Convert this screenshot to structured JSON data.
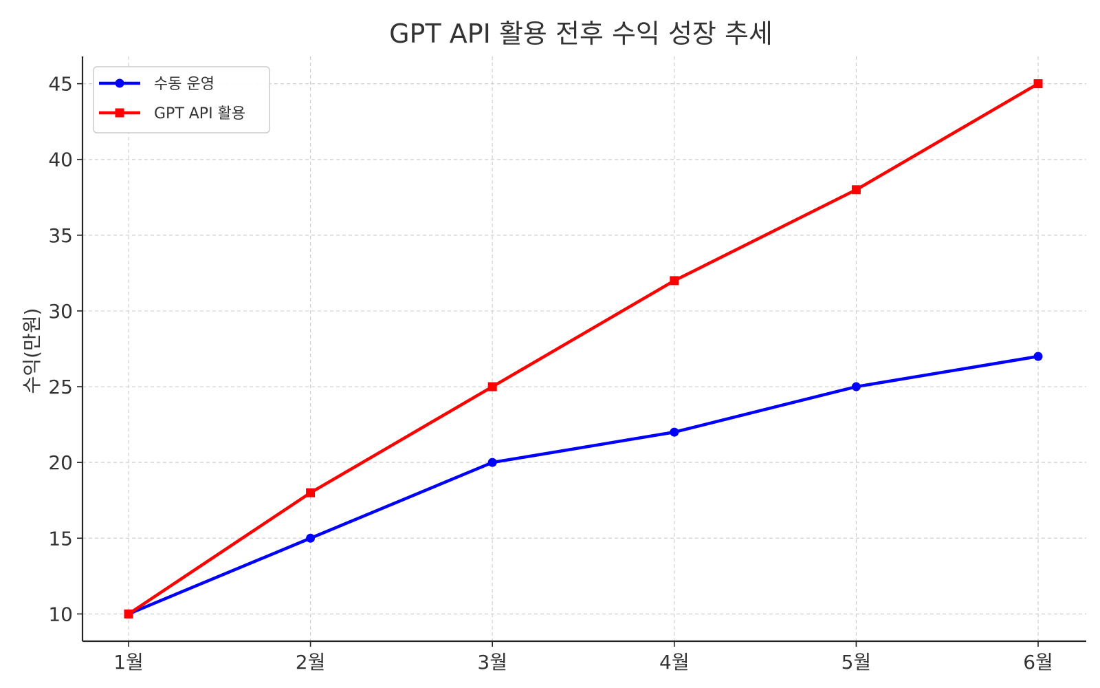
{
  "chart_data": {
    "type": "line",
    "title": "GPT API 활용 전후 수익 성장 추세",
    "xlabel": "",
    "ylabel": "수익(만원)",
    "categories": [
      "1월",
      "2월",
      "3월",
      "4월",
      "5월",
      "6월"
    ],
    "ylim": [
      8.2,
      46.8
    ],
    "yticks": [
      10,
      15,
      20,
      25,
      30,
      35,
      40,
      45
    ],
    "grid": true,
    "legend_position": "top-left",
    "series": [
      {
        "name": "수동 운영",
        "values": [
          10,
          15,
          20,
          22,
          25,
          27
        ],
        "color": "#0000ff",
        "marker": "circle"
      },
      {
        "name": "GPT API 활용",
        "values": [
          10,
          18,
          25,
          32,
          38,
          45
        ],
        "color": "#ff0000",
        "marker": "square"
      }
    ]
  }
}
